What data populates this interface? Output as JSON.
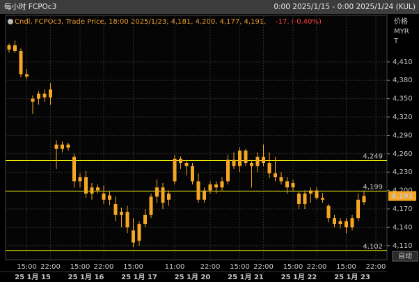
{
  "chart_data": {
    "type": "candlestick",
    "title": "每小时 FCPOc3",
    "subtitle": "0:00 2025/1/15 - 0:00 2025/1/24 (KUL)",
    "legend_text": "Cndl, FCPOc3, Trade Price, 18:00 2025/1/23, 4,181, 4,200, 4,177, 4,191,",
    "legend_change": "-17, (-0.40%)",
    "y_axis_label": [
      "价格",
      "MYR",
      "T"
    ],
    "auto_button": "自动",
    "color": "#f5a623",
    "grid": true,
    "categories": [
      null,
      null,
      null,
      "15:00",
      null,
      null,
      null,
      "22:00",
      null,
      null,
      null,
      null,
      "15:00",
      null,
      null,
      null,
      "22:00",
      null,
      null,
      null,
      null,
      "15:00",
      null,
      null,
      null,
      null,
      null,
      null,
      "11:00",
      null,
      null,
      null,
      null,
      null,
      "22:00",
      null,
      null,
      null,
      null,
      "15:00",
      null,
      null,
      null,
      "22:00",
      null,
      null,
      null,
      null,
      "15:00",
      null,
      null,
      null,
      "22:00",
      null,
      null,
      null,
      null,
      "15:00",
      null,
      null,
      null,
      null,
      "22:00"
    ],
    "date_labels": [
      null,
      null,
      null,
      null,
      "25 1月 15",
      null,
      null,
      null,
      null,
      null,
      null,
      null,
      null,
      "25 1月 16",
      null,
      null,
      null,
      null,
      null,
      null,
      null,
      null,
      "25 1月 17",
      null,
      null,
      null,
      null,
      null,
      null,
      null,
      null,
      "25 1月 20",
      null,
      null,
      null,
      null,
      null,
      null,
      null,
      null,
      "25 1月 21",
      null,
      null,
      null,
      null,
      null,
      null,
      null,
      null,
      "25 1月 22",
      null,
      null,
      null,
      null,
      null,
      null,
      null,
      null,
      "25 1月 23",
      null,
      null,
      null,
      null
    ],
    "open": [
      4430,
      4437,
      4428,
      4390,
      4345,
      4350,
      4358,
      4352,
      4275,
      4268,
      4275,
      4255,
      4215,
      4222,
      4195,
      4205,
      4195,
      4185,
      4178,
      4160,
      4165,
      4135,
      4118,
      4145,
      4160,
      4190,
      4205,
      4185,
      4215,
      4252,
      4245,
      4240,
      4215,
      4185,
      4200,
      4210,
      4205,
      4215,
      4250,
      4240,
      4265,
      4245,
      4240,
      4255,
      4245,
      4228,
      4222,
      4215,
      4205,
      4195,
      4178,
      4195,
      4200,
      4188,
      4175,
      4155,
      4145,
      4150,
      4140,
      4155,
      4181,
      null,
      null
    ],
    "high": [
      4440,
      4445,
      4432,
      4398,
      4355,
      4362,
      4365,
      4375,
      4282,
      4280,
      4278,
      4260,
      4228,
      4232,
      4212,
      4210,
      4208,
      4198,
      4190,
      4172,
      4175,
      4155,
      4150,
      4170,
      4195,
      4218,
      4212,
      4200,
      4258,
      4256,
      4250,
      4245,
      4228,
      4205,
      4215,
      4215,
      4222,
      4258,
      4262,
      4270,
      4268,
      4250,
      4262,
      4275,
      4262,
      4255,
      4230,
      4222,
      4218,
      4198,
      4200,
      4205,
      4205,
      4196,
      4178,
      4160,
      4155,
      4155,
      4160,
      4195,
      4200,
      null,
      null
    ],
    "low": [
      4425,
      4425,
      4385,
      4382,
      4325,
      4340,
      4345,
      4340,
      4235,
      4262,
      4265,
      4205,
      4205,
      4188,
      4185,
      4195,
      4178,
      4176,
      4150,
      4140,
      4130,
      4108,
      4110,
      4140,
      4155,
      4180,
      4170,
      4175,
      4210,
      4235,
      4225,
      4210,
      4180,
      4180,
      4195,
      4195,
      4200,
      4210,
      4235,
      4230,
      4240,
      4205,
      4230,
      4240,
      4220,
      4215,
      4210,
      4195,
      4198,
      4170,
      4170,
      4180,
      4185,
      4180,
      4148,
      4140,
      4138,
      4130,
      4135,
      4150,
      4177,
      null,
      null
    ],
    "close": [
      4437,
      4428,
      4390,
      4386,
      4350,
      4358,
      4352,
      4365,
      4268,
      4275,
      4270,
      4215,
      4222,
      4195,
      4205,
      4200,
      4185,
      4192,
      4160,
      4165,
      4140,
      4115,
      4145,
      4160,
      4190,
      4205,
      4180,
      4195,
      4252,
      4245,
      4240,
      4215,
      4185,
      4200,
      4210,
      4205,
      4215,
      4250,
      4240,
      4265,
      4245,
      4240,
      4255,
      4245,
      4228,
      4222,
      4215,
      4205,
      4212,
      4178,
      4195,
      4200,
      4188,
      4185,
      4155,
      4145,
      4150,
      4140,
      4155,
      4185,
      4191,
      null,
      null
    ],
    "ylim": [
      4087,
      4486
    ],
    "yticks": [
      {
        "value": 4110,
        "label": "4,110"
      },
      {
        "value": 4140,
        "label": "4,140"
      },
      {
        "value": 4170,
        "label": "4,170"
      },
      {
        "value": 4200,
        "label": "4,200"
      },
      {
        "value": 4230,
        "label": "4,230"
      },
      {
        "value": 4260,
        "label": "4,260"
      },
      {
        "value": 4290,
        "label": "4,290"
      },
      {
        "value": 4320,
        "label": "4,320"
      },
      {
        "value": 4350,
        "label": "4,350"
      },
      {
        "value": 4380,
        "label": "4,380"
      },
      {
        "value": 4410,
        "label": "4,410"
      }
    ],
    "hlines": [
      {
        "value": 4249,
        "label": "4,249"
      },
      {
        "value": 4199,
        "label": "4,199"
      },
      {
        "value": 4102,
        "label": "4,102"
      }
    ],
    "hline_color": "#e6e600",
    "last_price": {
      "value": 4191,
      "label": "4,191"
    }
  }
}
